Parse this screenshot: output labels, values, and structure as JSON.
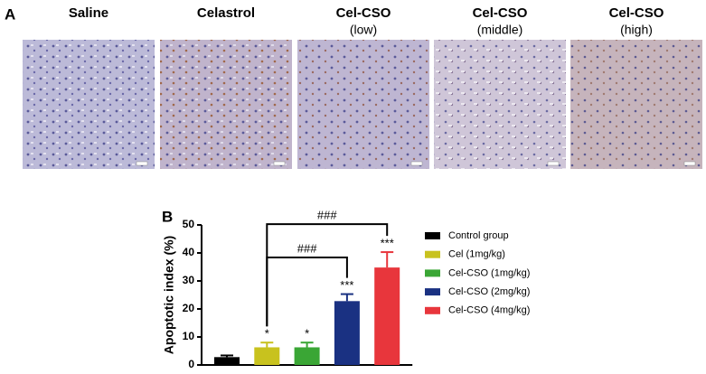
{
  "panels": {
    "a": "A",
    "b": "B"
  },
  "images": [
    {
      "title": "Saline"
    },
    {
      "title": "Celastrol"
    },
    {
      "title": "Cel-CSO",
      "subtitle": "(low)"
    },
    {
      "title": "Cel-CSO",
      "subtitle": "(middle)"
    },
    {
      "title": "Cel-CSO",
      "subtitle": "(high)"
    }
  ],
  "chart_data": {
    "type": "bar",
    "ylabel": "Apoptotic index (%)",
    "categories": [
      "Control group",
      "Cel (1mg/kg)",
      "Cel-CSO (1mg/kg)",
      "Cel-CSO (2mg/kg)",
      "Cel-CSO (4mg/kg)"
    ],
    "values": [
      2.8,
      6.3,
      6.3,
      22.8,
      34.8
    ],
    "errors": [
      0.6,
      1.7,
      1.7,
      2.5,
      5.5
    ],
    "colors": [
      "#000000",
      "#c8c21e",
      "#3aa635",
      "#1a3182",
      "#e8363c"
    ],
    "ylim": [
      0,
      50
    ],
    "yticks": [
      0,
      10,
      20,
      30,
      40,
      50
    ],
    "annotations": [
      {
        "text": "*",
        "category": "Cel (1mg/kg)"
      },
      {
        "text": "*",
        "category": "Cel-CSO (1mg/kg)"
      },
      {
        "text": "***",
        "category": "Cel-CSO (2mg/kg)"
      },
      {
        "text": "***",
        "category": "Cel-CSO (4mg/kg)"
      }
    ],
    "brackets": [
      {
        "text": "###",
        "from": "Cel (1mg/kg)",
        "to": "Cel-CSO (4mg/kg)",
        "y": 50.3
      },
      {
        "text": "###",
        "from": "Cel (1mg/kg)",
        "to": "Cel-CSO (2mg/kg)",
        "y": 38.4
      }
    ]
  }
}
